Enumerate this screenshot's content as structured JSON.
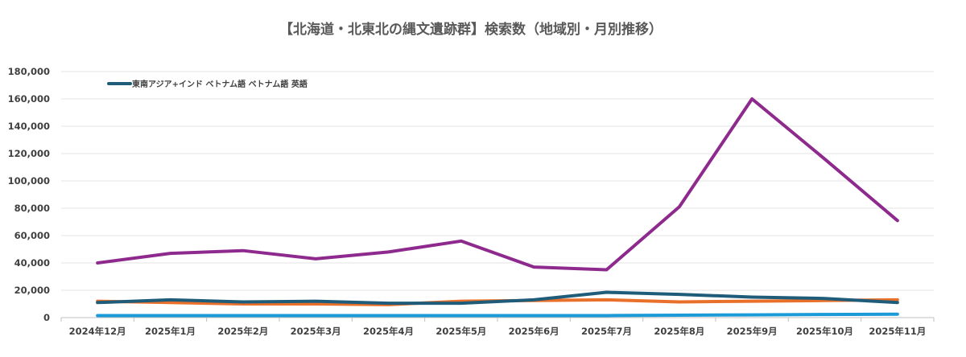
{
  "chart_data": {
    "type": "line",
    "title": "【北海道・北東北の縄文遺跡群】検索数（地域別・月別推移）",
    "xlabel": "",
    "ylabel": "",
    "ylim": [
      0,
      180000
    ],
    "ytick_step": 20000,
    "yticks": [
      "0",
      "20,000",
      "40,000",
      "60,000",
      "80,000",
      "100,000",
      "120,000",
      "140,000",
      "160,000",
      "180,000"
    ],
    "grid": true,
    "legend_position": "top-left",
    "legend": [
      "東南アジア+インド ベトナム語 ベトナム語 英語"
    ],
    "categories": [
      "2024年12月",
      "2025年1月",
      "2025年2月",
      "2025年3月",
      "2025年4月",
      "2025年5月",
      "2025年6月",
      "2025年7月",
      "2025年8月",
      "2025年9月",
      "2025年10月",
      "2025年11月"
    ],
    "series": [
      {
        "name": "purple",
        "color": "#8E2A8E",
        "values": [
          40000,
          47000,
          49000,
          43000,
          48000,
          56000,
          37000,
          35000,
          81000,
          160000,
          116000,
          71000
        ]
      },
      {
        "name": "東南アジア+インド ベトナム語 ベトナム語 英語",
        "color": "#1F5C7A",
        "values": [
          11000,
          13000,
          11500,
          12000,
          10500,
          10500,
          13000,
          18500,
          17000,
          15000,
          14000,
          11000
        ]
      },
      {
        "name": "orange",
        "color": "#E8702A",
        "values": [
          12000,
          11000,
          10000,
          10000,
          9500,
          12000,
          12500,
          13000,
          11500,
          12000,
          12500,
          13000
        ]
      },
      {
        "name": "light-blue",
        "color": "#1A9AD6",
        "values": [
          1500,
          1500,
          1500,
          1500,
          1500,
          1500,
          1500,
          1500,
          1800,
          2000,
          2300,
          2500
        ]
      }
    ]
  }
}
